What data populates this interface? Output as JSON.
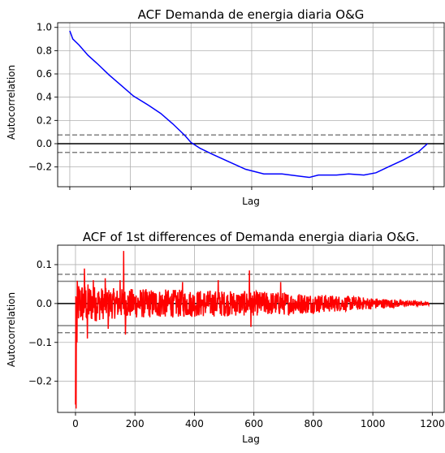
{
  "chart_data": [
    {
      "type": "line",
      "title": "ACF Demanda de energia diaria O&G",
      "xlabel": "Lag",
      "ylabel": "Autocorrelation",
      "xlim": [
        -40,
        1235
      ],
      "ylim": [
        -0.37,
        1.04
      ],
      "x_ticks": [
        0,
        200,
        400,
        600,
        800,
        1000,
        1200
      ],
      "x_tick_labels_shown": false,
      "y_ticks": [
        -0.2,
        0.0,
        0.2,
        0.4,
        0.6,
        0.8,
        1.0
      ],
      "y_tick_labels": [
        "−0.2",
        "0.0",
        "0.2",
        "0.4",
        "0.6",
        "0.8",
        "1.0"
      ],
      "grid": true,
      "series": [
        {
          "color": "#0000ff",
          "x": [
            0,
            10,
            30,
            60,
            90,
            130,
            170,
            210,
            260,
            300,
            340,
            380,
            400,
            430,
            470,
            520,
            580,
            640,
            700,
            760,
            790,
            820,
            850,
            880,
            920,
            970,
            1010,
            1050,
            1100,
            1150,
            1180
          ],
          "y": [
            0.97,
            0.9,
            0.85,
            0.76,
            0.69,
            0.59,
            0.5,
            0.41,
            0.33,
            0.26,
            0.17,
            0.07,
            0.01,
            -0.04,
            -0.09,
            -0.15,
            -0.22,
            -0.26,
            -0.26,
            -0.28,
            -0.29,
            -0.27,
            -0.27,
            -0.27,
            -0.26,
            -0.27,
            -0.25,
            -0.2,
            -0.14,
            -0.07,
            0.0
          ]
        }
      ],
      "reference_lines": [
        {
          "y": 0.0,
          "color": "#000000",
          "style": "solid"
        },
        {
          "y": 0.075,
          "color": "#808080",
          "style": "dashed"
        },
        {
          "y": -0.075,
          "color": "#808080",
          "style": "dashed"
        }
      ]
    },
    {
      "type": "line",
      "title": "ACF of 1st differences of Demanda energia diaria O&G.",
      "xlabel": "Lag",
      "ylabel": "Autocorrelation",
      "xlim": [
        -60,
        1240
      ],
      "ylim": [
        -0.28,
        0.15
      ],
      "x_ticks": [
        0,
        200,
        400,
        600,
        800,
        1000,
        1200
      ],
      "x_tick_labels": [
        "0",
        "200",
        "400",
        "600",
        "800",
        "1000",
        "1200"
      ],
      "y_ticks": [
        -0.2,
        -0.1,
        0.0,
        0.1
      ],
      "y_tick_labels": [
        "−0.2",
        "−0.1",
        "0.0",
        "0.1"
      ],
      "grid": true,
      "series": [
        {
          "color": "#ff0000",
          "description": "noisy autocorrelation of differenced series",
          "start_point": {
            "x": 0,
            "y": -0.26
          },
          "amplitude_envelope": [
            [
              1,
              0.06
            ],
            [
              100,
              0.04
            ],
            [
              400,
              0.035
            ],
            [
              700,
              0.03
            ],
            [
              1000,
              0.015
            ],
            [
              1190,
              0.004
            ]
          ],
          "spikes": [
            {
              "x": 2,
              "y": -0.27
            },
            {
              "x": 5,
              "y": -0.1
            },
            {
              "x": 7,
              "y": 0.04
            },
            {
              "x": 30,
              "y": 0.09
            },
            {
              "x": 40,
              "y": -0.09
            },
            {
              "x": 60,
              "y": 0.06
            },
            {
              "x": 100,
              "y": 0.065
            },
            {
              "x": 110,
              "y": -0.065
            },
            {
              "x": 150,
              "y": 0.06
            },
            {
              "x": 162,
              "y": 0.135
            },
            {
              "x": 168,
              "y": -0.08
            },
            {
              "x": 360,
              "y": 0.055
            },
            {
              "x": 480,
              "y": 0.06
            },
            {
              "x": 585,
              "y": 0.085
            },
            {
              "x": 590,
              "y": -0.06
            },
            {
              "x": 690,
              "y": 0.055
            }
          ]
        }
      ],
      "reference_lines": [
        {
          "y": 0.0,
          "color": "#000000",
          "style": "solid"
        },
        {
          "y": 0.057,
          "color": "#808080",
          "style": "solid"
        },
        {
          "y": -0.057,
          "color": "#808080",
          "style": "solid"
        },
        {
          "y": 0.075,
          "color": "#808080",
          "style": "dashed"
        },
        {
          "y": -0.075,
          "color": "#808080",
          "style": "dashed"
        }
      ]
    }
  ]
}
